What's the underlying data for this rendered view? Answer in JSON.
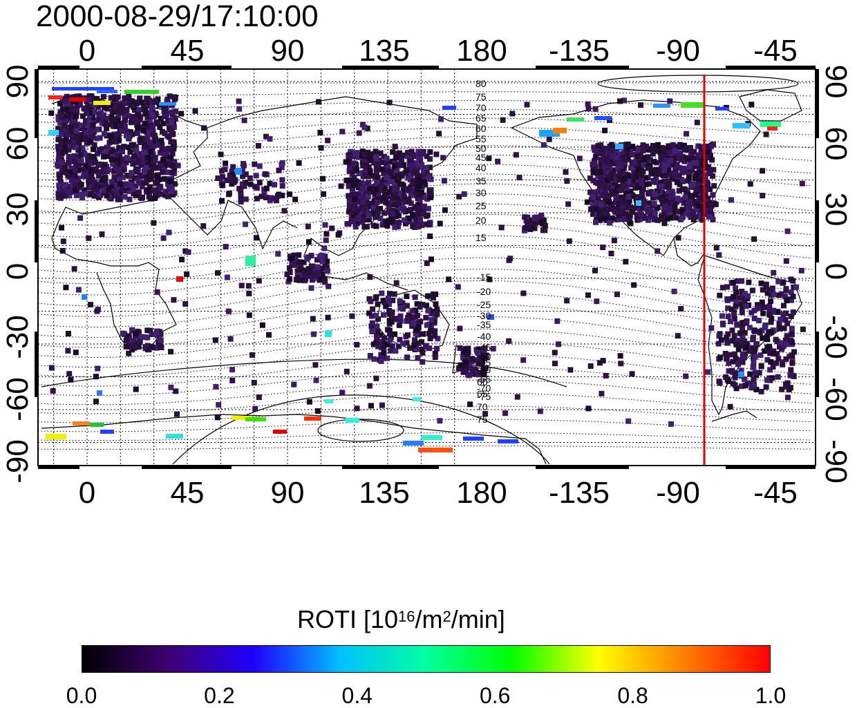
{
  "title": "2000-08-29/17:10:00",
  "map": {
    "top_lon_labels": [
      "0",
      "45",
      "90",
      "135",
      "180",
      "-135",
      "-90",
      "-45"
    ],
    "bottom_lon_labels": [
      "0",
      "45",
      "90",
      "135",
      "180",
      "-135",
      "-90",
      "-45"
    ],
    "left_lat_labels": [
      "90",
      "60",
      "30",
      "0",
      "-30",
      "-60",
      "-90"
    ],
    "right_lat_labels": [
      "90",
      "60",
      "30",
      "0",
      "-30",
      "-60",
      "-90"
    ],
    "contour_labels_north": [
      "80",
      "75",
      "70",
      "65",
      "60",
      "55",
      "50",
      "45",
      "40",
      "35",
      "30",
      "25",
      "20",
      "15"
    ],
    "contour_labels_south": [
      "-15",
      "-20",
      "-25",
      "-30",
      "-35",
      "-40",
      "-45",
      "-50",
      "-55",
      "-60",
      "-65",
      "-70",
      "-75"
    ],
    "contour_labels_south_2": [
      "55",
      "60",
      "65",
      "70",
      "75"
    ],
    "terminator_color": "#e00000"
  },
  "colorbar": {
    "label_main": "ROTI  [10",
    "label_sup1": "16",
    "label_mid": "/m",
    "label_sup2": "2",
    "label_end": "/min]",
    "ticks": [
      "0.0",
      "0.2",
      "0.4",
      "0.6",
      "0.8",
      "1.0"
    ],
    "colormap": [
      "#000000",
      "#400070",
      "#2000ff",
      "#00c0ff",
      "#00ffa0",
      "#00ff00",
      "#ffff00",
      "#ff8000",
      "#ff0000"
    ]
  }
}
